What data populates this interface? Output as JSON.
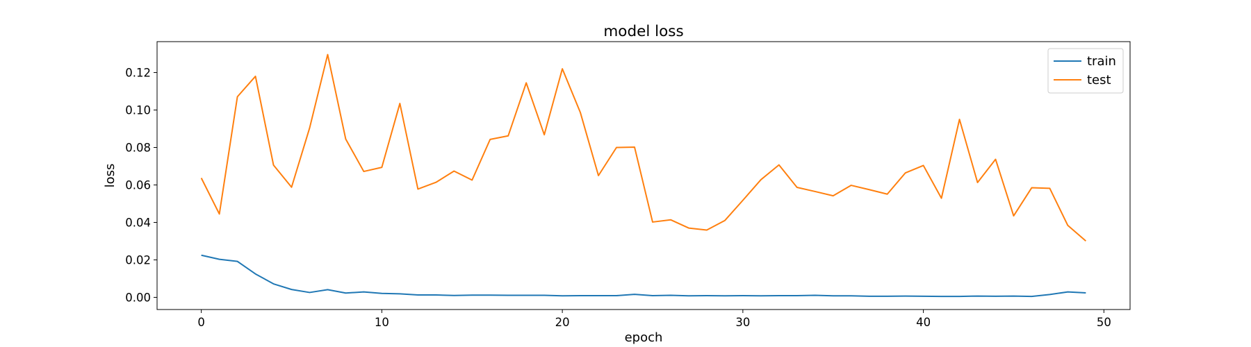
{
  "chart_data": {
    "type": "line",
    "title": "model loss",
    "xlabel": "epoch",
    "ylabel": "loss",
    "xlim": [
      -2.45,
      51.45
    ],
    "ylim": [
      -0.0065,
      0.1365
    ],
    "xticks": [
      0,
      10,
      20,
      30,
      40,
      50
    ],
    "xtick_labels": [
      "0",
      "10",
      "20",
      "30",
      "40",
      "50"
    ],
    "yticks": [
      0.0,
      0.02,
      0.04,
      0.06,
      0.08,
      0.1,
      0.12
    ],
    "ytick_labels": [
      "0.00",
      "0.02",
      "0.04",
      "0.06",
      "0.08",
      "0.10",
      "0.12"
    ],
    "grid": false,
    "legend_position": "top-right",
    "x": [
      0,
      1,
      2,
      3,
      4,
      5,
      6,
      7,
      8,
      9,
      10,
      11,
      12,
      13,
      14,
      15,
      16,
      17,
      18,
      19,
      20,
      21,
      22,
      23,
      24,
      25,
      26,
      27,
      28,
      29,
      30,
      31,
      32,
      33,
      34,
      35,
      36,
      37,
      38,
      39,
      40,
      41,
      42,
      43,
      44,
      45,
      46,
      47,
      48,
      49
    ],
    "series": [
      {
        "name": "train",
        "color": "#1f77b4",
        "values": [
          0.0225,
          0.0203,
          0.0192,
          0.0125,
          0.0072,
          0.0042,
          0.0026,
          0.0041,
          0.0023,
          0.0029,
          0.0021,
          0.0019,
          0.0013,
          0.0013,
          0.001,
          0.0012,
          0.0012,
          0.0011,
          0.0011,
          0.0011,
          0.0008,
          0.0009,
          0.0009,
          0.0009,
          0.0016,
          0.0009,
          0.0011,
          0.0008,
          0.0009,
          0.0008,
          0.0009,
          0.0008,
          0.0009,
          0.0009,
          0.0011,
          0.0008,
          0.0008,
          0.0006,
          0.0006,
          0.0007,
          0.0006,
          0.0005,
          0.0005,
          0.0007,
          0.0006,
          0.0007,
          0.0005,
          0.0015,
          0.0029,
          0.0024
        ]
      },
      {
        "name": "test",
        "color": "#ff7f0e",
        "values": [
          0.0637,
          0.0445,
          0.1071,
          0.118,
          0.0706,
          0.0588,
          0.0904,
          0.1296,
          0.0845,
          0.0672,
          0.0694,
          0.1035,
          0.0578,
          0.0614,
          0.0674,
          0.0626,
          0.0843,
          0.0862,
          0.1145,
          0.0868,
          0.122,
          0.0986,
          0.065,
          0.08,
          0.0802,
          0.0402,
          0.0414,
          0.037,
          0.0359,
          0.041,
          0.0518,
          0.0628,
          0.0707,
          0.0587,
          0.0565,
          0.0542,
          0.0598,
          0.0575,
          0.0551,
          0.0664,
          0.0704,
          0.0529,
          0.095,
          0.0613,
          0.0737,
          0.0435,
          0.0585,
          0.0582,
          0.0384,
          0.0301
        ]
      }
    ]
  }
}
